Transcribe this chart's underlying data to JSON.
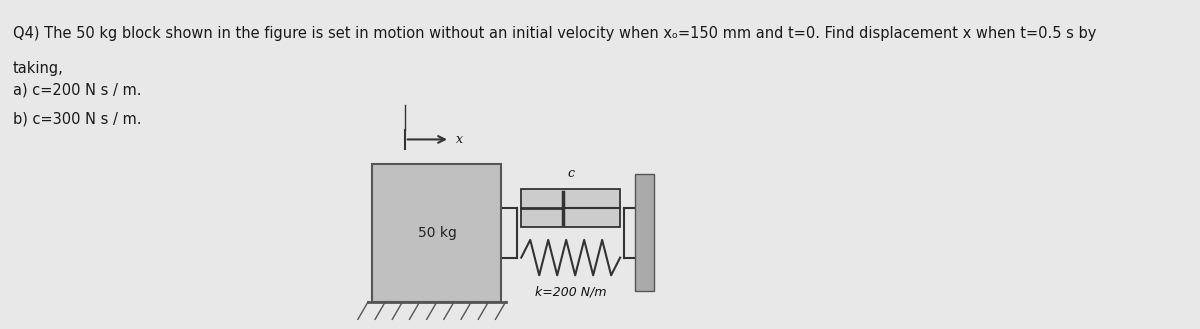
{
  "bg_color": "#e8e8e8",
  "text_color": "#1a1a1a",
  "title_line1": "Q4) The 50 kg block shown in the figure is set in motion without an initial velocity when xₒ=150 mm and t=0. Find displacement x when t=0.5 s by",
  "title_line2": "taking,",
  "item_a": "a) c=200 N s / m.",
  "item_b": "b) c=300 N s / m.",
  "block_label": "50 kg",
  "spring_label": "k=200 N/m",
  "damper_label": "c",
  "x_arrow_label": "x",
  "font_size_title": 10.5,
  "font_size_items": 10.5,
  "block_facecolor": "#c0c0c0",
  "block_edgecolor": "#555555",
  "wall_facecolor": "#aaaaaa",
  "wall_edgecolor": "#555555",
  "line_color": "#333333",
  "ground_color": "#555555"
}
